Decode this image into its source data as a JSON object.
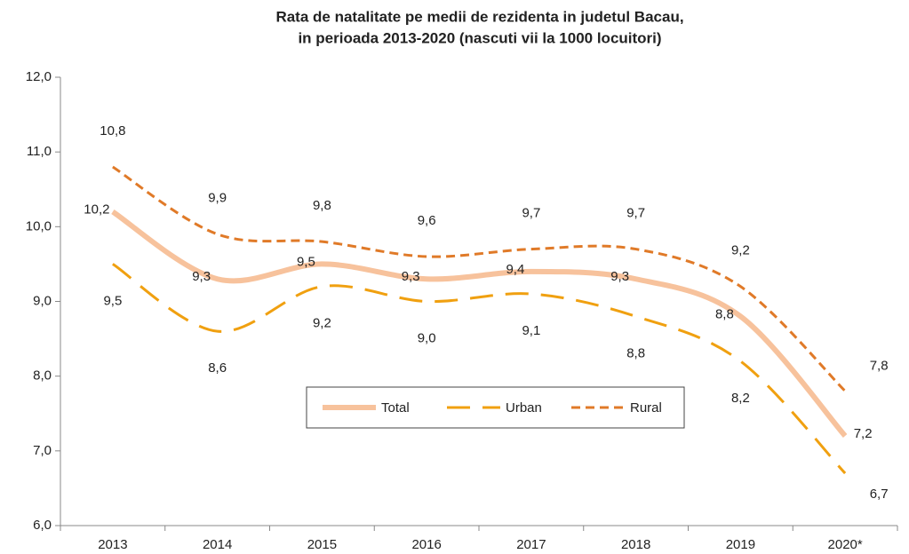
{
  "chart_data": {
    "type": "line",
    "title": "Rata de natalitate pe medii de rezidenta in judetul Bacau,",
    "subtitle": "in perioada 2013-2020 (nascuti vii la 1000 locuitori)",
    "categories": [
      "2013",
      "2014",
      "2015",
      "2016",
      "2017",
      "2018",
      "2019",
      "2020*"
    ],
    "series": [
      {
        "name": "Total",
        "color": "#f7c29c",
        "dash": "solid",
        "values": [
          10.2,
          9.3,
          9.5,
          9.3,
          9.4,
          9.3,
          8.8,
          7.2
        ],
        "value_labels": [
          "10,2",
          "9,3",
          "9,5",
          "9,3",
          "9,4",
          "9,3",
          "8,8",
          "7,2"
        ]
      },
      {
        "name": "Urban",
        "color": "#f0a010",
        "dash": "long",
        "values": [
          9.5,
          8.6,
          9.2,
          9.0,
          9.1,
          8.8,
          8.2,
          6.7
        ],
        "value_labels": [
          "9,5",
          "8,6",
          "9,2",
          "9,0",
          "9,1",
          "8,8",
          "8,2",
          "6,7"
        ]
      },
      {
        "name": "Rural",
        "color": "#e07a28",
        "dash": "short",
        "values": [
          10.8,
          9.9,
          9.8,
          9.6,
          9.7,
          9.7,
          9.2,
          7.8
        ],
        "value_labels": [
          "10,8",
          "9,9",
          "9,8",
          "9,6",
          "9,7",
          "9,7",
          "9,2",
          "7,8"
        ]
      }
    ],
    "ylim": [
      6,
      12
    ],
    "yticks": [
      {
        "value": 6,
        "label": "6,0"
      },
      {
        "value": 7,
        "label": "7,0"
      },
      {
        "value": 8,
        "label": "8,0"
      },
      {
        "value": 9,
        "label": "9,0"
      },
      {
        "value": 10,
        "label": "10,0"
      },
      {
        "value": 11,
        "label": "11,0"
      },
      {
        "value": 12,
        "label": "12,0"
      }
    ],
    "grid": false,
    "legend": "center"
  }
}
